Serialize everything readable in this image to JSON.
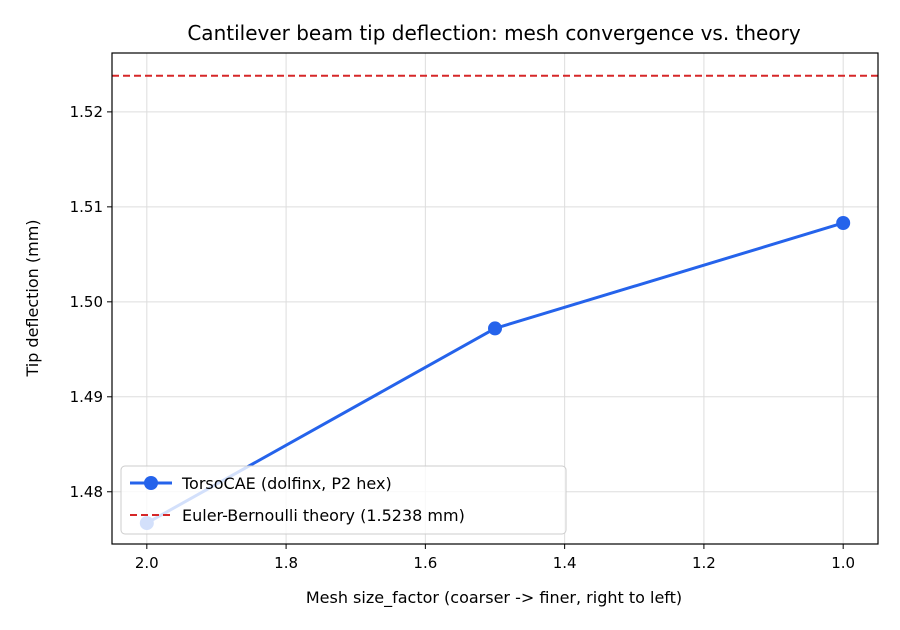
{
  "chart_data": {
    "type": "line",
    "title": "Cantilever beam tip deflection: mesh convergence vs. theory",
    "xlabel": "Mesh size_factor (coarser -> finer, right to left)",
    "ylabel": "Tip deflection (mm)",
    "x_inverted": true,
    "xlim": [
      2.05,
      0.95
    ],
    "ylim": [
      1.4745,
      1.5262
    ],
    "xticks": [
      2.0,
      1.8,
      1.6,
      1.4,
      1.2,
      1.0
    ],
    "xtick_labels": [
      "2.0",
      "1.8",
      "1.6",
      "1.4",
      "1.2",
      "1.0"
    ],
    "yticks": [
      1.48,
      1.49,
      1.5,
      1.51,
      1.52
    ],
    "ytick_labels": [
      "1.48",
      "1.49",
      "1.50",
      "1.51",
      "1.52"
    ],
    "grid": true,
    "legend_position": "lower-left",
    "series": [
      {
        "name": "TorsoCAE (dolfinx, P2 hex)",
        "x": [
          2.0,
          1.5,
          1.0
        ],
        "y": [
          1.4767,
          1.4972,
          1.5083
        ],
        "color": "#2563eb",
        "style": "solid",
        "marker": "circle"
      }
    ],
    "reference_lines": [
      {
        "name": "Euler-Bernoulli theory (1.5238 mm)",
        "y": 1.5238,
        "color": "#d62728",
        "style": "dashed"
      }
    ]
  }
}
